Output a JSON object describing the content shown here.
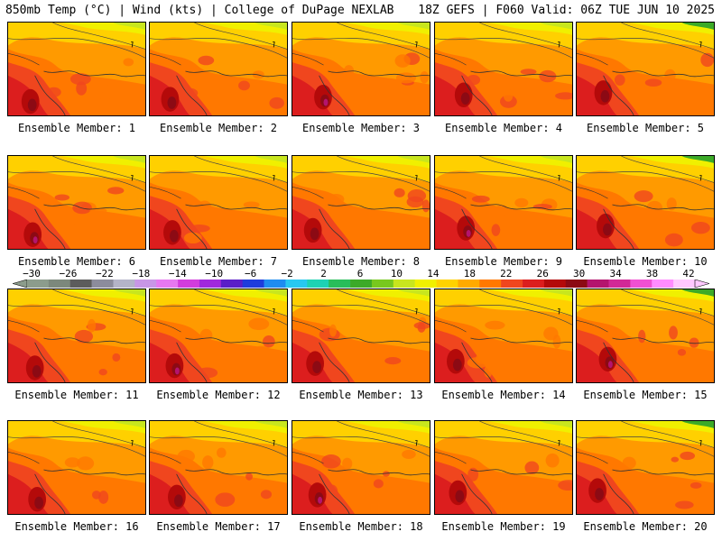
{
  "header": {
    "left": "850mb Temp (°C) | Wind (kts) | College of DuPage NEXLAB",
    "right": "18Z GEFS | F060 Valid: 06Z TUE JUN 10 2025"
  },
  "members": [
    "Ensemble Member: 1",
    "Ensemble Member: 2",
    "Ensemble Member: 3",
    "Ensemble Member: 4",
    "Ensemble Member: 5",
    "Ensemble Member: 6",
    "Ensemble Member: 7",
    "Ensemble Member: 8",
    "Ensemble Member: 9",
    "Ensemble Member: 10",
    "Ensemble Member: 11",
    "Ensemble Member: 12",
    "Ensemble Member: 13",
    "Ensemble Member: 14",
    "Ensemble Member: 15",
    "Ensemble Member: 16",
    "Ensemble Member: 17",
    "Ensemble Member: 18",
    "Ensemble Member: 19",
    "Ensemble Member: 20"
  ],
  "colorbar": {
    "labels": [
      "−30",
      "−26",
      "−22",
      "−18",
      "−14",
      "−10",
      "−6",
      "−2",
      "2",
      "6",
      "10",
      "14",
      "18",
      "22",
      "26",
      "30",
      "34",
      "38",
      "42"
    ],
    "colors": [
      "#8c9c8c",
      "#7c887c",
      "#5c5c5c",
      "#8c8c9c",
      "#b4b4c8",
      "#c896e6",
      "#e678f0",
      "#d23cdc",
      "#a028dc",
      "#5a1ec8",
      "#1e3cdc",
      "#1e8cf0",
      "#28c8f0",
      "#1ed2b4",
      "#28be5a",
      "#3caa28",
      "#78c81e",
      "#c8e61e",
      "#f0f000",
      "#ffd200",
      "#ffaa00",
      "#ff7800",
      "#f0461e",
      "#dc1e1e",
      "#b40a0a",
      "#8c0a14",
      "#b4146e",
      "#d22896",
      "#f050d2",
      "#ff8cff",
      "#ffc8ff"
    ]
  }
}
